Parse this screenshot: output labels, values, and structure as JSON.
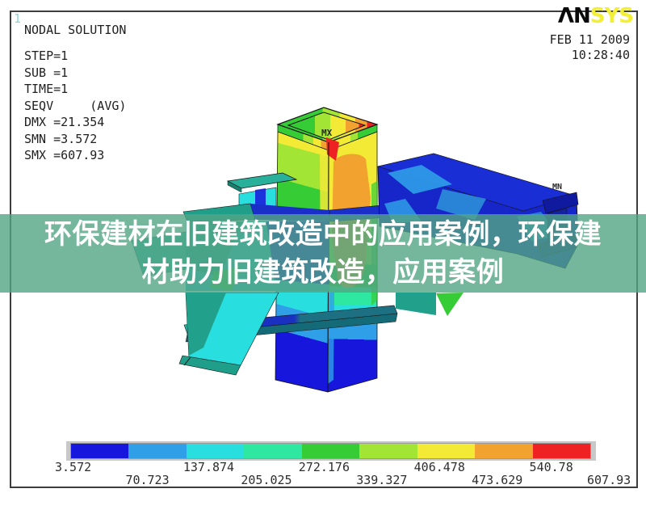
{
  "app": {
    "plot_number": "1",
    "logo": {
      "black": "ΛN",
      "yellow": "SYS"
    },
    "date": "FEB 11 2009",
    "time": "10:28:40"
  },
  "header": {
    "title": "NODAL SOLUTION",
    "params": [
      "STEP=1",
      "SUB =1",
      "TIME=1",
      "SEQV     (AVG)",
      "DMX =21.354",
      "SMN =3.572",
      "SMX =607.93"
    ]
  },
  "model": {
    "mx_label": "MX",
    "mn_label": "MN"
  },
  "banner": {
    "line1": "环保建材在旧建筑改造中的应用案例，环保建",
    "line2": "材助力旧建筑改造，应用案例",
    "bg_rgba": "rgba(82,165,132,0.8)",
    "text_color": "#ffffff"
  },
  "colorbar": {
    "values": [
      "3.572",
      "70.723",
      "137.874",
      "205.025",
      "272.176",
      "339.327",
      "406.478",
      "473.629",
      "540.78",
      "607.93"
    ],
    "colors": [
      "#1616dc",
      "#2f9fe8",
      "#29dede",
      "#2ee8a2",
      "#35cc35",
      "#a2e535",
      "#f2ea35",
      "#f2a22e",
      "#ee2222"
    ]
  },
  "colors": {
    "logo_yellow": "#f2ef35",
    "plot_number_cyan": "#8fd6d6",
    "frame_border": "#3d3d3d",
    "banner_green": "#52a584",
    "text": "#1f1f1f"
  }
}
